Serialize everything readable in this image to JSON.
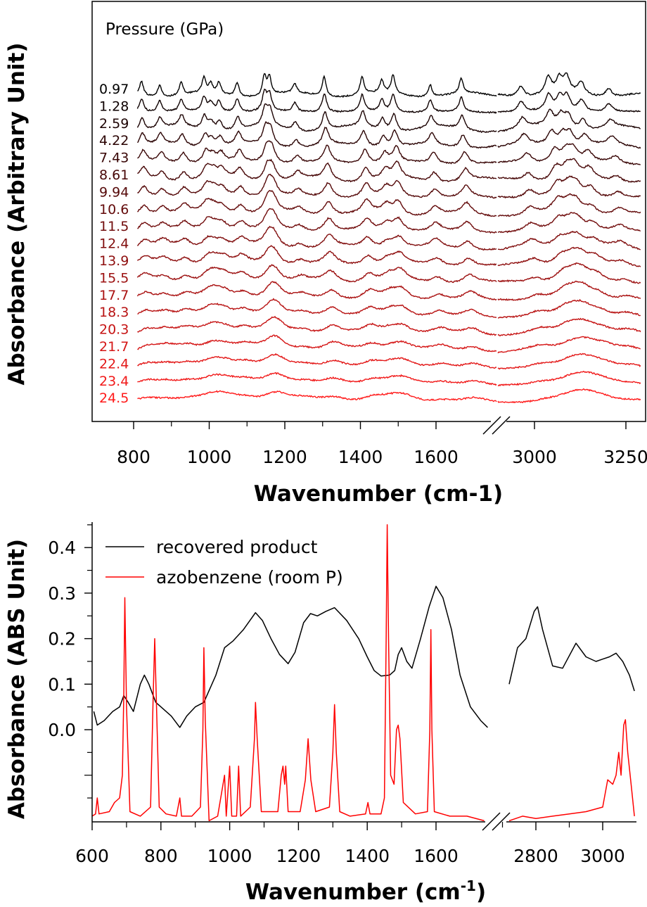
{
  "chart_data": [
    {
      "type": "line",
      "title": "",
      "xlabel": "Wavenumber (cm-1)",
      "ylabel": "Absorbance (Arbitrary Unit)",
      "legend_title": "Pressure (GPa)",
      "x_segments": [
        {
          "xlim": [
            700,
            1760
          ],
          "ticks": [
            800,
            1000,
            1200,
            1400,
            1600
          ],
          "tick_labels": [
            "800",
            "1000",
            "1200",
            "1400",
            "1600"
          ]
        },
        {
          "xlim": [
            2850,
            3290
          ],
          "ticks": [
            3000,
            3250
          ],
          "tick_labels": [
            "3000",
            "3250"
          ]
        }
      ],
      "broken_x_axis": true,
      "stacked_offset": true,
      "series_color_start": "#000000",
      "series_color_end": "#ff1a1a",
      "pressures": [
        "0.97",
        "1.28",
        "2.59",
        "4.22",
        "7.43",
        "8.61",
        "9.94",
        "10.6",
        "11.5",
        "12.4",
        "13.9",
        "15.5",
        "17.7",
        "18.3",
        "20.3",
        "21.7",
        "22.4",
        "23.4",
        "24.5"
      ],
      "peak_positions_low_pressure": [
        820,
        868,
        925,
        985,
        1003,
        1025,
        1073,
        1145,
        1158,
        1225,
        1303,
        1403,
        1455,
        1485,
        1583,
        1665,
        2960,
        3035,
        3065,
        3085,
        3125,
        3200
      ]
    },
    {
      "type": "line",
      "title": "",
      "xlabel": "Wavenumber (cm-1)",
      "ylabel": "Absorbance (ABS Unit)",
      "y_ticks": [
        0.0,
        0.1,
        0.2,
        0.3,
        0.4
      ],
      "y_tick_labels": [
        "0.0",
        "0.1",
        "0.2",
        "0.3",
        "0.4"
      ],
      "ylim": [
        -0.2,
        0.45
      ],
      "x_segments": [
        {
          "xlim": [
            600,
            1760
          ],
          "ticks": [
            600,
            800,
            1000,
            1200,
            1400,
            1600
          ],
          "tick_labels": [
            "600",
            "800",
            "1000",
            "1200",
            "1400",
            "1600"
          ]
        },
        {
          "xlim": [
            2700,
            3100
          ],
          "ticks": [
            2800,
            3000
          ],
          "tick_labels": [
            "2800",
            "3000"
          ]
        }
      ],
      "broken_x_axis": true,
      "legend_placement": "top-left",
      "series": [
        {
          "name": "recovered product",
          "color": "#000000",
          "points": [
            [
              605,
              0.04
            ],
            [
              615,
              0.01
            ],
            [
              635,
              0.02
            ],
            [
              660,
              0.04
            ],
            [
              680,
              0.05
            ],
            [
              692,
              0.075
            ],
            [
              705,
              0.06
            ],
            [
              720,
              0.04
            ],
            [
              740,
              0.1
            ],
            [
              752,
              0.12
            ],
            [
              765,
              0.1
            ],
            [
              785,
              0.06
            ],
            [
              800,
              0.05
            ],
            [
              830,
              0.03
            ],
            [
              855,
              0.005
            ],
            [
              875,
              0.03
            ],
            [
              900,
              0.05
            ],
            [
              925,
              0.06
            ],
            [
              960,
              0.12
            ],
            [
              985,
              0.18
            ],
            [
              1010,
              0.195
            ],
            [
              1040,
              0.22
            ],
            [
              1075,
              0.257
            ],
            [
              1095,
              0.24
            ],
            [
              1120,
              0.2
            ],
            [
              1145,
              0.165
            ],
            [
              1170,
              0.145
            ],
            [
              1190,
              0.17
            ],
            [
              1215,
              0.235
            ],
            [
              1235,
              0.255
            ],
            [
              1255,
              0.25
            ],
            [
              1280,
              0.26
            ],
            [
              1305,
              0.268
            ],
            [
              1340,
              0.24
            ],
            [
              1375,
              0.2
            ],
            [
              1400,
              0.16
            ],
            [
              1420,
              0.13
            ],
            [
              1440,
              0.118
            ],
            [
              1465,
              0.12
            ],
            [
              1480,
              0.13
            ],
            [
              1490,
              0.165
            ],
            [
              1500,
              0.18
            ],
            [
              1515,
              0.15
            ],
            [
              1530,
              0.135
            ],
            [
              1555,
              0.2
            ],
            [
              1580,
              0.27
            ],
            [
              1600,
              0.315
            ],
            [
              1620,
              0.29
            ],
            [
              1645,
              0.22
            ],
            [
              1670,
              0.12
            ],
            [
              1700,
              0.05
            ],
            [
              1730,
              0.02
            ],
            [
              1750,
              0.005
            ],
            [
              2720,
              0.1
            ],
            [
              2745,
              0.18
            ],
            [
              2770,
              0.2
            ],
            [
              2795,
              0.26
            ],
            [
              2805,
              0.27
            ],
            [
              2820,
              0.22
            ],
            [
              2850,
              0.14
            ],
            [
              2880,
              0.135
            ],
            [
              2920,
              0.19
            ],
            [
              2950,
              0.16
            ],
            [
              2980,
              0.15
            ],
            [
              3000,
              0.155
            ],
            [
              3020,
              0.16
            ],
            [
              3040,
              0.168
            ],
            [
              3060,
              0.15
            ],
            [
              3080,
              0.12
            ],
            [
              3095,
              0.085
            ]
          ]
        },
        {
          "name": "azobenzene (room P)",
          "color": "#ff0000",
          "points": [
            [
              600,
              -0.19
            ],
            [
              610,
              -0.185
            ],
            [
              615,
              -0.15
            ],
            [
              620,
              -0.185
            ],
            [
              650,
              -0.18
            ],
            [
              665,
              -0.16
            ],
            [
              680,
              -0.15
            ],
            [
              688,
              -0.1
            ],
            [
              692,
              0.075
            ],
            [
              695,
              0.29
            ],
            [
              700,
              0.05
            ],
            [
              710,
              -0.18
            ],
            [
              740,
              -0.19
            ],
            [
              770,
              -0.17
            ],
            [
              777,
              0.06
            ],
            [
              782,
              0.2
            ],
            [
              787,
              0.06
            ],
            [
              795,
              -0.17
            ],
            [
              815,
              -0.185
            ],
            [
              845,
              -0.19
            ],
            [
              855,
              -0.15
            ],
            [
              860,
              -0.19
            ],
            [
              890,
              -0.19
            ],
            [
              915,
              -0.17
            ],
            [
              922,
              0.0
            ],
            [
              925,
              0.18
            ],
            [
              929,
              0.02
            ],
            [
              940,
              -0.2
            ],
            [
              965,
              -0.19
            ],
            [
              985,
              -0.1
            ],
            [
              990,
              -0.19
            ],
            [
              1000,
              -0.08
            ],
            [
              1006,
              -0.19
            ],
            [
              1020,
              -0.19
            ],
            [
              1026,
              -0.08
            ],
            [
              1032,
              -0.19
            ],
            [
              1060,
              -0.17
            ],
            [
              1072,
              -0.02
            ],
            [
              1075,
              0.06
            ],
            [
              1080,
              -0.02
            ],
            [
              1092,
              -0.18
            ],
            [
              1140,
              -0.18
            ],
            [
              1150,
              -0.1
            ],
            [
              1155,
              -0.08
            ],
            [
              1160,
              -0.12
            ],
            [
              1163,
              -0.08
            ],
            [
              1170,
              -0.18
            ],
            [
              1205,
              -0.18
            ],
            [
              1220,
              -0.11
            ],
            [
              1228,
              -0.02
            ],
            [
              1236,
              -0.11
            ],
            [
              1250,
              -0.18
            ],
            [
              1290,
              -0.17
            ],
            [
              1300,
              -0.05
            ],
            [
              1305,
              0.055
            ],
            [
              1310,
              -0.05
            ],
            [
              1320,
              -0.18
            ],
            [
              1350,
              -0.19
            ],
            [
              1395,
              -0.185
            ],
            [
              1402,
              -0.16
            ],
            [
              1408,
              -0.185
            ],
            [
              1440,
              -0.185
            ],
            [
              1450,
              -0.15
            ],
            [
              1455,
              0.2
            ],
            [
              1458,
              0.45
            ],
            [
              1462,
              0.2
            ],
            [
              1468,
              -0.1
            ],
            [
              1478,
              -0.12
            ],
            [
              1485,
              0.0
            ],
            [
              1490,
              0.01
            ],
            [
              1495,
              -0.02
            ],
            [
              1505,
              -0.16
            ],
            [
              1540,
              -0.185
            ],
            [
              1575,
              -0.18
            ],
            [
              1582,
              0.0
            ],
            [
              1585,
              0.22
            ],
            [
              1588,
              0.0
            ],
            [
              1595,
              -0.18
            ],
            [
              1640,
              -0.19
            ],
            [
              1690,
              -0.19
            ],
            [
              1740,
              -0.2
            ],
            [
              2720,
              -0.2
            ],
            [
              2760,
              -0.19
            ],
            [
              2800,
              -0.195
            ],
            [
              2850,
              -0.19
            ],
            [
              2900,
              -0.185
            ],
            [
              2950,
              -0.18
            ],
            [
              3000,
              -0.17
            ],
            [
              3015,
              -0.11
            ],
            [
              3030,
              -0.12
            ],
            [
              3040,
              -0.1
            ],
            [
              3048,
              -0.05
            ],
            [
              3055,
              -0.1
            ],
            [
              3063,
              0.01
            ],
            [
              3068,
              0.022
            ],
            [
              3075,
              -0.05
            ],
            [
              3085,
              -0.12
            ],
            [
              3095,
              -0.19
            ]
          ]
        }
      ]
    }
  ]
}
